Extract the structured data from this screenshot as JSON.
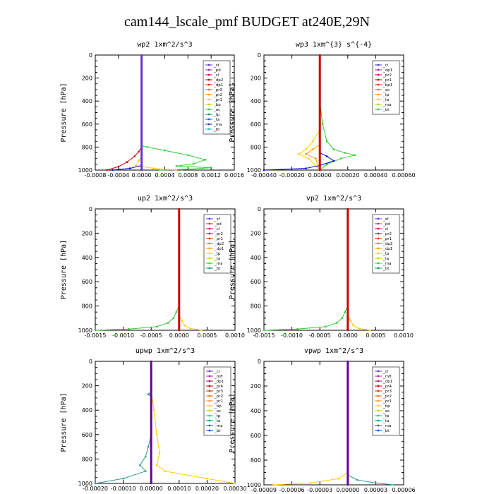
{
  "title": "cam144_lscale_pmf  BUDGET at240E,29N",
  "chart_data": [
    {
      "type": "line",
      "title": "wp2   1xm^2/s^3",
      "ylabel": "Pressure  [hPa]",
      "xlim": [
        -0.0008,
        0.0016
      ],
      "ylim": [
        1000,
        0
      ],
      "xticks": [
        -0.0008,
        -0.0004,
        0,
        0.0004,
        0.0008,
        0.0012,
        0.0016
      ],
      "xticklabels": [
        "-0.0008",
        "-0.0004",
        "0.0000",
        "0.0004",
        "0.0008",
        "0.0012",
        "0.0016"
      ],
      "yticks": [
        0,
        200,
        400,
        600,
        800,
        1000
      ],
      "legend": [
        "_sf",
        "_pd",
        "_cl",
        "_dp2",
        "_dp1",
        "_pr3",
        "_pr2",
        "_pr1",
        "_bp",
        "_ac",
        "_tp",
        "_ta",
        "_ma",
        "_bt"
      ],
      "series": [
        {
          "name": "_bp",
          "color": "#33cc33",
          "x": [
            0,
            0,
            0.0001,
            0.0004,
            0.0008,
            0.0011,
            0.0009,
            0.0006,
            0.0012,
            0.0007,
            0.0003
          ],
          "y": [
            780,
            790,
            800,
            830,
            870,
            910,
            945,
            965,
            980,
            995,
            1000
          ]
        },
        {
          "name": "_dp1",
          "color": "#cc0000",
          "x": [
            0,
            0,
            -5e-05,
            -0.00012,
            -0.00025,
            -0.0004,
            -0.0006
          ],
          "y": [
            790,
            800,
            840,
            880,
            930,
            970,
            1000
          ]
        },
        {
          "name": "_pr2",
          "color": "#ffcc00",
          "x": [
            0,
            -5e-05,
            -0.0001,
            0.0002,
            0.0006
          ],
          "y": [
            880,
            920,
            960,
            985,
            1000
          ]
        },
        {
          "name": "_tp",
          "color": "#0000cc",
          "x": [
            0,
            -0.0002,
            -0.0005
          ],
          "y": [
            960,
            985,
            1000
          ]
        },
        {
          "name": "_sf",
          "color": "#6633cc",
          "x": [
            0,
            0
          ],
          "y": [
            0,
            1000
          ]
        }
      ]
    },
    {
      "type": "line",
      "title": "wp3   1xm^{3} s^{-4}",
      "ylabel": "Pressure  [hPa]",
      "xlim": [
        -0.0004,
        0.0006
      ],
      "ylim": [
        1000,
        0
      ],
      "xticks": [
        -0.0004,
        -0.0002,
        0,
        0.0002,
        0.0004,
        0.0006
      ],
      "xticklabels": [
        "-0.00040",
        "-0.00020",
        "0.00000",
        "0.00020",
        "0.00040",
        "0.00060"
      ],
      "yticks": [
        0,
        200,
        400,
        600,
        800,
        1000
      ],
      "legend": [
        "_cl",
        "_dp1",
        "_pr2",
        "_pr1",
        "_bp1",
        "_ac",
        "_tp",
        "_ta",
        "_ma",
        "_bt"
      ],
      "series": [
        {
          "name": "_ac",
          "color": "#33cc33",
          "x": [
            0,
            2e-05,
            5e-05,
            0.0001,
            0.00018,
            0.00025,
            0.00015,
            5e-05,
            0
          ],
          "y": [
            400,
            600,
            750,
            820,
            850,
            870,
            900,
            950,
            1000
          ]
        },
        {
          "name": "_pr1",
          "color": "#ffcc00",
          "x": [
            0,
            -5e-05,
            -0.0001,
            -0.00015,
            -8e-05,
            0
          ],
          "y": [
            650,
            750,
            820,
            860,
            900,
            1000
          ]
        },
        {
          "name": "_pr2",
          "color": "#ff9900",
          "x": [
            0,
            -5e-05,
            -0.0001,
            -3e-05,
            0
          ],
          "y": [
            780,
            820,
            860,
            900,
            1000
          ]
        },
        {
          "name": "_tp",
          "color": "#0000cc",
          "x": [
            0,
            5e-05,
            0.0001,
            0,
            -0.0001,
            -0.0004
          ],
          "y": [
            850,
            880,
            920,
            960,
            985,
            1000
          ]
        },
        {
          "name": "_dp1",
          "color": "#cc0000",
          "x": [
            0,
            0
          ],
          "y": [
            0,
            1000
          ]
        }
      ]
    },
    {
      "type": "line",
      "title": "up2   1xm^2/s^3",
      "ylabel": "Pressure  [hPa]",
      "xlim": [
        -0.0015,
        0.001
      ],
      "ylim": [
        1000,
        0
      ],
      "xticks": [
        -0.0015,
        -0.001,
        -0.0005,
        0,
        0.0005,
        0.001
      ],
      "xticklabels": [
        "-0.0015",
        "-0.0010",
        "-0.0005",
        "0.0000",
        "0.0005",
        "0.0010"
      ],
      "yticks": [
        0,
        200,
        400,
        600,
        800,
        1000
      ],
      "legend": [
        "_sf",
        "_pd",
        "_cl",
        "_pr2",
        "_pr1",
        "_dp2",
        "_dp1",
        "_tp",
        "_ta",
        "_ma",
        "_bt"
      ],
      "series": [
        {
          "name": "_dp1",
          "color": "#33cc33",
          "x": [
            0,
            -5e-05,
            -0.0001,
            -0.0002,
            -0.0004,
            -0.0009,
            -0.0015
          ],
          "y": [
            800,
            850,
            900,
            940,
            970,
            990,
            1000
          ]
        },
        {
          "name": "_pr1",
          "color": "#ffcc00",
          "x": [
            0,
            5e-05,
            0.0001,
            0.0002,
            0.0004
          ],
          "y": [
            880,
            920,
            960,
            985,
            1000
          ]
        },
        {
          "name": "_sf",
          "color": "#cc0000",
          "x": [
            0,
            0
          ],
          "y": [
            0,
            1000
          ]
        }
      ]
    },
    {
      "type": "line",
      "title": "vp2   1xm^2/s^3",
      "ylabel": "Pressure  [hPa]",
      "xlim": [
        -0.0015,
        0.001
      ],
      "ylim": [
        1000,
        0
      ],
      "xticks": [
        -0.0015,
        -0.001,
        -0.0005,
        0,
        0.0005,
        0.001
      ],
      "xticklabels": [
        "-0.0015",
        "-0.0010",
        "-0.0005",
        "0.0000",
        "0.0005",
        "0.0010"
      ],
      "yticks": [
        0,
        200,
        400,
        600,
        800,
        1000
      ],
      "legend": [
        "_sf",
        "_pd",
        "_cl",
        "_pr2",
        "_pr1",
        "_dp2",
        "_dp1",
        "_tp",
        "_ta",
        "_ma",
        "_bt"
      ],
      "series": [
        {
          "name": "_dp1",
          "color": "#33cc33",
          "x": [
            0,
            -5e-05,
            -0.0001,
            -0.0002,
            -0.0004,
            -0.0009,
            -0.0015
          ],
          "y": [
            800,
            850,
            900,
            940,
            970,
            990,
            1000
          ]
        },
        {
          "name": "_pr1",
          "color": "#ffcc00",
          "x": [
            0,
            5e-05,
            0.0001,
            0.0002,
            0.0004
          ],
          "y": [
            880,
            920,
            960,
            985,
            1000
          ]
        },
        {
          "name": "_sf",
          "color": "#cc0000",
          "x": [
            0,
            0
          ],
          "y": [
            0,
            1000
          ]
        }
      ]
    },
    {
      "type": "line",
      "title": "upwp   1xm^2/s^3",
      "ylabel": "Pressure  [hPa]",
      "xlim": [
        -0.0002,
        0.0003
      ],
      "ylim": [
        1000,
        0
      ],
      "xticks": [
        -0.0002,
        -0.0001,
        0,
        0.0001,
        0.0002,
        0.0003
      ],
      "xticklabels": [
        "-0.00020",
        "-0.00010",
        "0.00000",
        "0.00010",
        "0.00020",
        "0.00030"
      ],
      "yticks": [
        0,
        200,
        400,
        600,
        800,
        1000
      ],
      "legend": [
        "_cl",
        "_mfl",
        "_dp1",
        "_pr4",
        "_pr3",
        "_pr2",
        "_pr1",
        "_bp",
        "_ac",
        "_tp",
        "_ta",
        "_ma",
        "_bt"
      ],
      "series": [
        {
          "name": "_pr2",
          "color": "#ffcc00",
          "x": [
            0,
            1e-05,
            2e-05,
            3e-05,
            2e-05,
            5e-05,
            0.0002,
            0.0003
          ],
          "y": [
            240,
            400,
            600,
            750,
            850,
            900,
            960,
            1000
          ]
        },
        {
          "name": "_ac",
          "color": "#339999",
          "x": [
            0,
            -1e-05,
            -2e-05,
            -4e-05,
            -2e-05,
            -0.0001,
            -0.0002
          ],
          "y": [
            600,
            700,
            780,
            850,
            900,
            960,
            1000
          ]
        },
        {
          "name": "_tp",
          "color": "#3366cc",
          "x": [
            0,
            -1e-05,
            0
          ],
          "y": [
            250,
            270,
            290
          ]
        },
        {
          "name": "_mfl",
          "color": "#660099",
          "x": [
            0,
            0
          ],
          "y": [
            0,
            1000
          ]
        }
      ]
    },
    {
      "type": "line",
      "title": "vpwp   1xm^2/s^3",
      "ylabel": "Pressure  [hPa]",
      "xlim": [
        -9e-05,
        6e-05
      ],
      "ylim": [
        1000,
        0
      ],
      "xticks": [
        -9e-05,
        -6e-05,
        -3e-05,
        0,
        3e-05,
        6e-05
      ],
      "xticklabels": [
        "-0.00009",
        "-0.00006",
        "-0.00003",
        "0.00000",
        "0.00003",
        "0.00006"
      ],
      "yticks": [
        0,
        200,
        400,
        600,
        800,
        1000
      ],
      "legend": [
        "_cl",
        "_mfl",
        "_dp1",
        "_pr4",
        "_pr3",
        "_pr2",
        "_pr1",
        "_bp",
        "_ac",
        "_tp",
        "_ta",
        "_ma",
        "_bt"
      ],
      "series": [
        {
          "name": "_pr2",
          "color": "#ffcc00",
          "x": [
            0,
            -1e-05,
            -4e-05,
            -8e-05
          ],
          "y": [
            900,
            950,
            985,
            1000
          ]
        },
        {
          "name": "_ac",
          "color": "#339999",
          "x": [
            0,
            1e-05,
            3e-05,
            5e-05
          ],
          "y": [
            920,
            960,
            985,
            1000
          ]
        },
        {
          "name": "_mfl",
          "color": "#660099",
          "x": [
            0,
            0
          ],
          "y": [
            0,
            1000
          ]
        }
      ]
    }
  ]
}
